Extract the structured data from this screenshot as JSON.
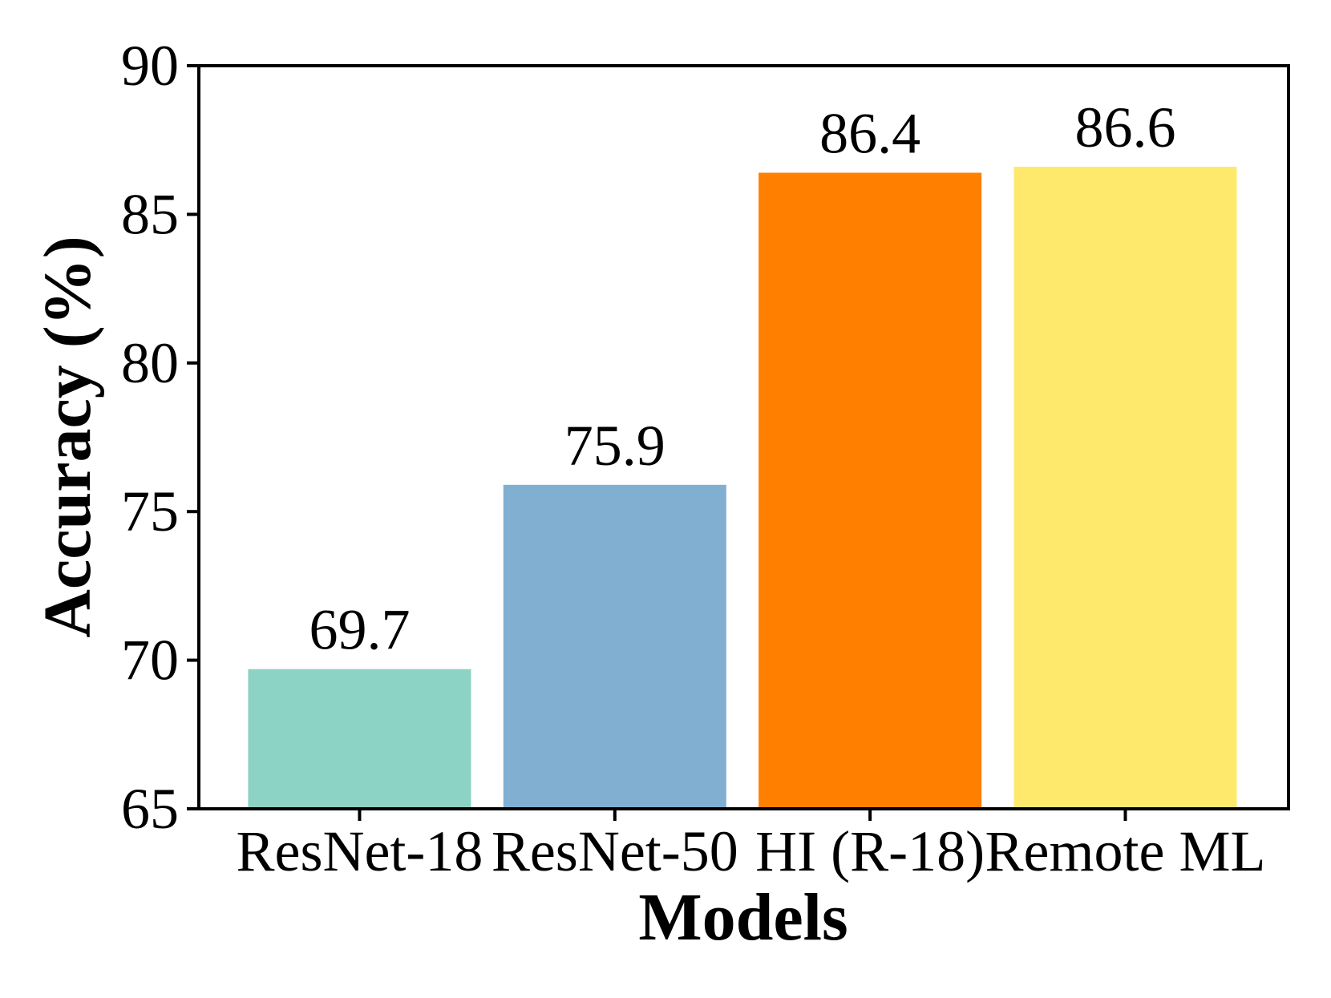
{
  "chart_data": {
    "type": "bar",
    "title": "",
    "categories": [
      "ResNet-18",
      "ResNet-50",
      "HI (R-18)",
      "Remote ML"
    ],
    "values": [
      69.7,
      75.9,
      86.4,
      86.6
    ],
    "value_labels": [
      "69.7",
      "75.9",
      "86.4",
      "86.6"
    ],
    "bar_colors": [
      "#8CD2C5",
      "#80AFD2",
      "#FF8000",
      "#FFE96D"
    ],
    "xlabel": "Models",
    "ylabel": "Accuracy (%)",
    "ylim": [
      65,
      90
    ],
    "yticks": [
      65,
      70,
      75,
      80,
      85,
      90
    ],
    "ytick_labels": [
      "65",
      "70",
      "75",
      "80",
      "85",
      "90"
    ],
    "grid": false,
    "legend": null,
    "axis_color": "#000000",
    "text_color": "#000000",
    "background": "#FFFFFF"
  }
}
